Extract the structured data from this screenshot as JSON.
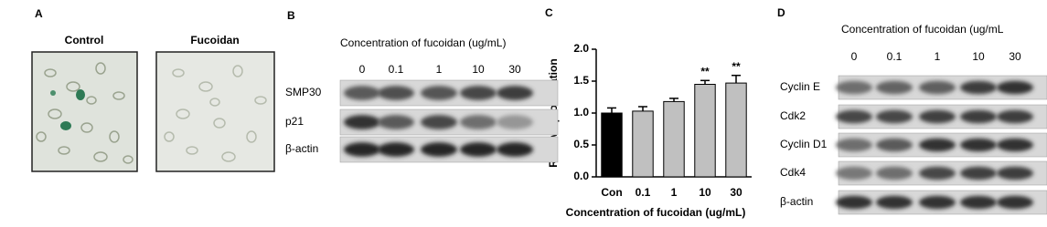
{
  "panel_a": {
    "label": "A",
    "images": [
      "Control",
      "Fucoidan"
    ]
  },
  "panel_b": {
    "label": "B",
    "header": "Concentration of fucoidan (ug/mL)",
    "lanes": [
      "0",
      "0.1",
      "1",
      "10",
      "30"
    ],
    "rows": [
      "SMP30",
      "p21",
      "β-actin"
    ]
  },
  "chart_data": {
    "type": "bar",
    "panel_label": "C",
    "categories": [
      "Con",
      "0.1",
      "1",
      "10",
      "30"
    ],
    "values": [
      1.0,
      1.03,
      1.18,
      1.45,
      1.47
    ],
    "errors": [
      0.08,
      0.07,
      0.05,
      0.06,
      0.12
    ],
    "colors": [
      "#000000",
      "#c0c0c0",
      "#c0c0c0",
      "#c0c0c0",
      "#c0c0c0"
    ],
    "annotations": [
      null,
      null,
      null,
      "**",
      "**"
    ],
    "ylabel": "Relative proliferation",
    "xlabel": "Concentration of fucoidan (ug/mL)",
    "ylim": [
      0,
      2.0
    ],
    "yticks": [
      {
        "value": 0,
        "label": "0.0"
      },
      {
        "value": 0.5,
        "label": "0.5"
      },
      {
        "value": 1.0,
        "label": "1.0"
      },
      {
        "value": 1.5,
        "label": "1.5"
      },
      {
        "value": 2.0,
        "label": "2.0"
      }
    ]
  },
  "panel_d": {
    "label": "D",
    "header": "Concentration of fucoidan (ug/mL",
    "lanes": [
      "0",
      "0.1",
      "1",
      "10",
      "30"
    ],
    "rows": [
      "Cyclin E",
      "Cdk2",
      "Cyclin D1",
      "Cdk4",
      "β-actin"
    ]
  }
}
